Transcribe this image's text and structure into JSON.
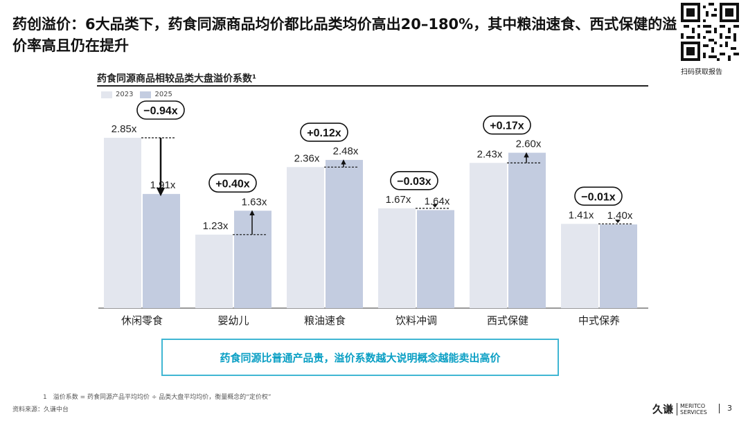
{
  "slide": {
    "headline": "药创溢价：6大品类下，药食同源商品均价都比品类均价高出20–180%，其中粮油速食、西式保健的溢价率高且仍在提升",
    "qr_label": "扫码获取报告",
    "callout": "药食同源比普通产品贵，溢价系数越大说明概念越能卖出高价",
    "footnote": "1　溢价系数 = 药食同源产品平均均价 ÷ 品类大盘平均均价，衡量概念的“定价权”",
    "source": "资料来源：久谦中台",
    "brand_cn": "久谦",
    "brand_en_1": "MERITCO",
    "brand_en_2": "SERVICES",
    "page_number": "3"
  },
  "colors": {
    "bar_2023": "#e3e6ee",
    "bar_2025": "#c3cce0",
    "accent": "#0a9fc4"
  },
  "chart_data": {
    "type": "bar",
    "title": "药食同源商品相较品类大盘溢价系数¹",
    "categories": [
      "休闲零食",
      "婴幼儿",
      "粮油速食",
      "饮料冲调",
      "西式保健",
      "中式保养"
    ],
    "series": [
      {
        "name": "2023",
        "values": [
          2.85,
          1.23,
          2.36,
          1.67,
          2.43,
          1.41
        ],
        "labels": [
          "2.85x",
          "1.23x",
          "2.36x",
          "1.67x",
          "2.43x",
          "1.41x"
        ]
      },
      {
        "name": "2025",
        "values": [
          1.91,
          1.63,
          2.48,
          1.64,
          2.6,
          1.4
        ],
        "labels": [
          "1.91x",
          "1.63x",
          "2.48x",
          "1.64x",
          "2.60x",
          "1.40x"
        ]
      }
    ],
    "changes": [
      "−0.94x",
      "+0.40x",
      "+0.12x",
      "−0.03x",
      "+0.17x",
      "−0.01x"
    ],
    "ylim": [
      0,
      3.3
    ],
    "legend": "top-left",
    "grid": false
  }
}
